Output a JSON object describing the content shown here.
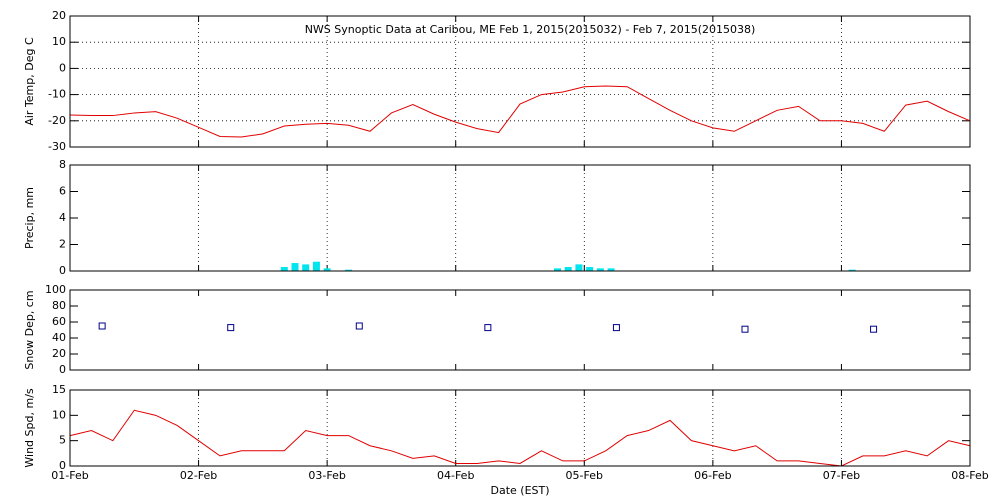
{
  "chart_data": [
    {
      "type": "line",
      "title": "NWS Synoptic Data at Caribou, ME   Feb  1, 2015(2015032) - Feb  7, 2015(2015038)",
      "ylabel": "Air Temp, Deg C",
      "color": "#e00000",
      "x": [
        0,
        4,
        8,
        12,
        16,
        20,
        24,
        28,
        32,
        36,
        40,
        44,
        48,
        52,
        56,
        60,
        64,
        68,
        72,
        76,
        80,
        84,
        88,
        92,
        96,
        100,
        104,
        108,
        112,
        116,
        120,
        124,
        128,
        132,
        136,
        140,
        144,
        148,
        152,
        156,
        160,
        164,
        168
      ],
      "values": [
        -17.8,
        -18,
        -18,
        -17,
        -16.5,
        -19,
        -22.5,
        -26,
        -26.2,
        -25,
        -22,
        -21.3,
        -21,
        -21.7,
        -24,
        -17,
        -13.8,
        -17.5,
        -20.5,
        -23,
        -24.5,
        -13.6,
        -10,
        -9,
        -7,
        -6.7,
        -7,
        -11.5,
        -16,
        -20,
        -22.7,
        -24,
        -20,
        -16,
        -14.5,
        -20,
        -20,
        -21,
        -24,
        -14,
        -12.5,
        -16.5,
        -20
      ],
      "ylim": [
        -30,
        20
      ],
      "yticks": [
        -30,
        -20,
        -10,
        0,
        10,
        20
      ],
      "xgrid": true,
      "ygrid": true
    },
    {
      "type": "bar",
      "ylabel": "Precip, mm",
      "color": "#00e5ee",
      "x": [
        40,
        42,
        44,
        46,
        48,
        52,
        91,
        93,
        95,
        97,
        99,
        101,
        146
      ],
      "values": [
        0.3,
        0.6,
        0.5,
        0.7,
        0.2,
        0.1,
        0.2,
        0.3,
        0.5,
        0.3,
        0.2,
        0.2,
        0.1
      ],
      "ylim": [
        0,
        8
      ],
      "yticks": [
        0,
        2,
        4,
        6,
        8
      ],
      "xgrid": true,
      "ygrid": false
    },
    {
      "type": "scatter",
      "ylabel": "Snow Dep, cm",
      "color": "#00008b",
      "x": [
        6,
        30,
        54,
        78,
        102,
        126,
        150
      ],
      "values": [
        55,
        53,
        55,
        53,
        53,
        51,
        51
      ],
      "ylim": [
        0,
        100
      ],
      "yticks": [
        0,
        20,
        40,
        60,
        80,
        100
      ],
      "xgrid": false,
      "ygrid": false
    },
    {
      "type": "line",
      "ylabel": "Wind Spd, m/s",
      "color": "#e00000",
      "xlabel": "Date (EST)",
      "x": [
        0,
        4,
        8,
        12,
        16,
        20,
        24,
        28,
        32,
        36,
        40,
        44,
        48,
        52,
        56,
        60,
        64,
        68,
        72,
        76,
        80,
        84,
        88,
        92,
        96,
        100,
        104,
        108,
        112,
        116,
        120,
        124,
        128,
        132,
        136,
        140,
        144,
        148,
        152,
        156,
        160,
        164,
        168
      ],
      "values": [
        6,
        7,
        5,
        11,
        10,
        8,
        5,
        2,
        3,
        3,
        3,
        7,
        6,
        6,
        4,
        3,
        1.5,
        2,
        0.5,
        0.5,
        1,
        0.5,
        3,
        1,
        1,
        3,
        6,
        7,
        9,
        5,
        4,
        3,
        4,
        1,
        1,
        0.5,
        0,
        2,
        2,
        3,
        2,
        5,
        4
      ],
      "ylim": [
        0,
        15
      ],
      "yticks": [
        0,
        5,
        10,
        15
      ],
      "xgrid": true,
      "ygrid": false,
      "xlim": [
        0,
        168
      ],
      "xticks": [
        {
          "value": 0,
          "label": "01-Feb"
        },
        {
          "value": 24,
          "label": "02-Feb"
        },
        {
          "value": 48,
          "label": "03-Feb"
        },
        {
          "value": 72,
          "label": "04-Feb"
        },
        {
          "value": 96,
          "label": "05-Feb"
        },
        {
          "value": 120,
          "label": "06-Feb"
        },
        {
          "value": 144,
          "label": "07-Feb"
        },
        {
          "value": 168,
          "label": "08-Feb"
        }
      ]
    }
  ]
}
